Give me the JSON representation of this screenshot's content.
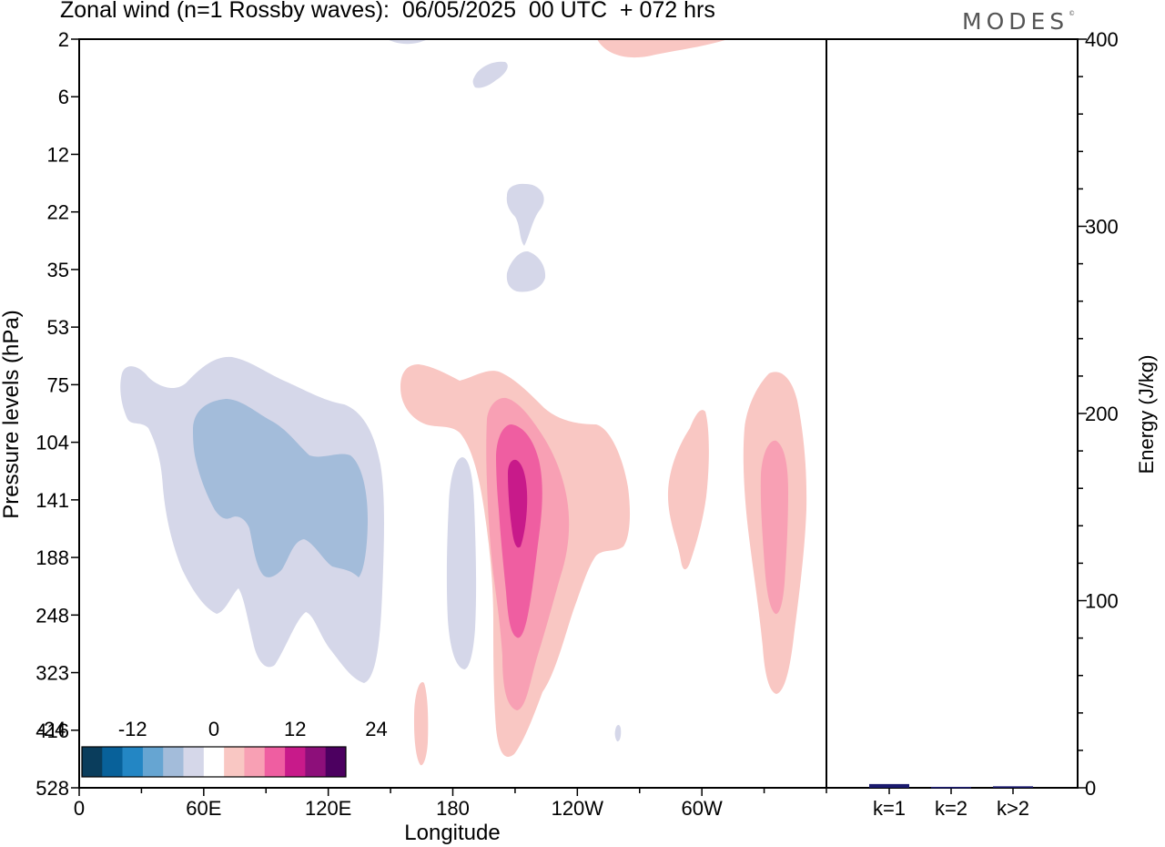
{
  "title": "Zonal wind (n=1 Rossby waves):  06/05/2025  00 UTC  + 072 hrs",
  "logo": "MODES",
  "logo_mark": "©",
  "chart_data": [
    {
      "type": "contour",
      "xlabel": "Longitude",
      "ylabel": "Pressure levels (hPa)",
      "x_ticks": [
        "0",
        "60E",
        "120E",
        "180",
        "120W",
        "60W"
      ],
      "x_tick_lon": [
        0,
        60,
        120,
        180,
        240,
        300
      ],
      "xlim": [
        0,
        360
      ],
      "y_ticks": [
        "2",
        "6",
        "12",
        "22",
        "35",
        "53",
        "75",
        "104",
        "141",
        "188",
        "248",
        "323",
        "416",
        "528"
      ],
      "colorbar": {
        "labels": [
          "-24",
          "-12",
          "0",
          "12",
          "24"
        ],
        "label_levels": [
          -24,
          -12,
          0,
          12,
          24
        ],
        "levels": [
          -30,
          -27,
          -24,
          -21,
          -18,
          -15,
          -12,
          -9,
          -6,
          -3,
          3,
          6,
          9,
          12,
          15,
          18,
          21,
          24,
          27,
          30
        ],
        "colors": [
          "#0a3d5c",
          "#08619a",
          "#2386c4",
          "#66a5d2",
          "#a3bcda",
          "#d5d7e9",
          "#ffffff",
          "#f9c7c3",
          "#f8a0b4",
          "#ef5ea1",
          "#c81a8a",
          "#8d0f7a",
          "#4c0060"
        ]
      },
      "features": [
        {
          "sign": "negative",
          "level": -3,
          "region": "lon 8-63, 75-323 hPa"
        },
        {
          "sign": "negative",
          "level": -6,
          "region": "lon 20-55, 100-200 hPa"
        },
        {
          "sign": "positive",
          "level": 3,
          "region": "lon 150-215, 75-500 hPa"
        },
        {
          "sign": "positive",
          "level": 6,
          "region": "lon 205-225, 100-400 hPa"
        },
        {
          "sign": "positive",
          "level": 9,
          "region": "lon 205-220, 115-300 hPa"
        },
        {
          "sign": "positive",
          "level": 12,
          "region": "lon 208-214, 130-180 hPa"
        },
        {
          "sign": "positive",
          "level": 3,
          "region": "lon 280-305, 75-350 hPa"
        },
        {
          "sign": "positive",
          "level": 6,
          "region": "lon 285-300, 110-250 hPa"
        }
      ]
    },
    {
      "type": "bar",
      "categories": [
        "k=1",
        "k=2",
        "k>2"
      ],
      "values": [
        2,
        0.5,
        0.8
      ],
      "ylabel": "Energy (J/kg)",
      "ylim": [
        0,
        400
      ],
      "y_ticks": [
        "0",
        "100",
        "200",
        "300",
        "400"
      ],
      "y_tick_values": [
        0,
        100,
        200,
        300,
        400
      ],
      "bar_color": "#1a1a6e"
    }
  ]
}
